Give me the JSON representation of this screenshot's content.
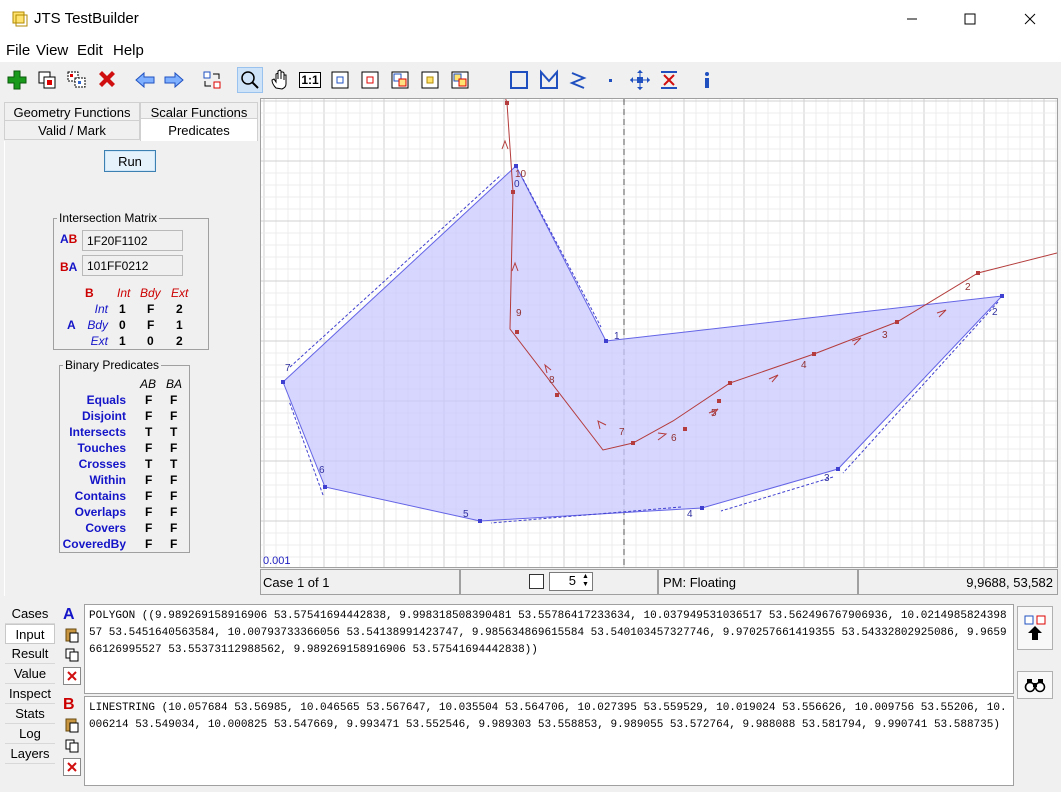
{
  "window": {
    "title": "JTS TestBuilder",
    "app_icon": "jts-app-icon",
    "controls": [
      "minimize-icon",
      "maximize-icon",
      "close-icon"
    ]
  },
  "menu": [
    "File",
    "View",
    "Edit",
    "Help"
  ],
  "toolbar": {
    "left_icons": [
      "add-case-icon",
      "copy-case-icon",
      "duplicate-case-icon",
      "delete-case-icon",
      "prev-case-icon",
      "next-case-icon",
      "exchange-geometries-icon",
      "zoom-icon",
      "pan-icon",
      "one-to-one-icon",
      "zoom-to-input-icon",
      "zoom-to-a-icon",
      "zoom-to-b-icon",
      "zoom-to-result-icon",
      "zoom-to-full-icon"
    ],
    "draw_icons": [
      "draw-rectangle-icon",
      "draw-polygon-icon",
      "draw-linestring-icon",
      "draw-point-icon",
      "edit-vertex-icon",
      "delete-vertex-icon",
      "info-icon"
    ],
    "selected": "zoom-icon",
    "one_to_one_label": "1:1"
  },
  "left_tabs": {
    "row1": [
      "Geometry Functions",
      "Scalar Functions"
    ],
    "row2": [
      "Valid / Mark",
      "Predicates"
    ],
    "active": "Predicates"
  },
  "run_label": "Run",
  "intersection_matrix": {
    "title": "Intersection Matrix",
    "ab_label": "AB",
    "ab_value": "1F20F1102",
    "ba_label": "BA",
    "ba_value": "101FF0212",
    "b_header": "B",
    "a_header": "A",
    "cols": [
      "Int",
      "Bdy",
      "Ext"
    ],
    "rows": [
      {
        "label": "Int",
        "values": [
          "1",
          "F",
          "2"
        ]
      },
      {
        "label": "Bdy",
        "values": [
          "0",
          "F",
          "1"
        ]
      },
      {
        "label": "Ext",
        "values": [
          "1",
          "0",
          "2"
        ]
      }
    ]
  },
  "binary_predicates": {
    "title": "Binary Predicates",
    "cols": [
      "AB",
      "BA"
    ],
    "rows": [
      {
        "name": "Equals",
        "ab": "F",
        "ba": "F"
      },
      {
        "name": "Disjoint",
        "ab": "F",
        "ba": "F"
      },
      {
        "name": "Intersects",
        "ab": "T",
        "ba": "T"
      },
      {
        "name": "Touches",
        "ab": "F",
        "ba": "F"
      },
      {
        "name": "Crosses",
        "ab": "T",
        "ba": "T"
      },
      {
        "name": "Within",
        "ab": "F",
        "ba": "F"
      },
      {
        "name": "Contains",
        "ab": "F",
        "ba": "F"
      },
      {
        "name": "Overlaps",
        "ab": "F",
        "ba": "F"
      },
      {
        "name": "Covers",
        "ab": "F",
        "ba": "F"
      },
      {
        "name": "CoveredBy",
        "ab": "F",
        "ba": "F"
      }
    ]
  },
  "canvas": {
    "scale_label": "0.001",
    "polygon_vertex_labels": [
      "0",
      "1",
      "2",
      "3",
      "4",
      "5",
      "6",
      "7"
    ],
    "line_vertex_labels": [
      "2",
      "3",
      "4",
      "5",
      "6",
      "7",
      "8",
      "9",
      "10"
    ],
    "colors": {
      "polygon_fill": "#c8c8ff",
      "polygon_stroke": "#6464e6",
      "line_stroke": "#b43c3c",
      "grid": "#e6e6e6"
    }
  },
  "status": {
    "case": "Case 1 of 1",
    "spinner_value": "5",
    "precision": "PM: Floating",
    "coords": "9,9688, 53,582"
  },
  "bottom_tabs": [
    "Cases",
    "Input",
    "Result",
    "Value",
    "Inspect",
    "Stats",
    "Log",
    "Layers"
  ],
  "bottom_active": "Input",
  "geom_a": {
    "label": "A",
    "wkt": "POLYGON ((9.989269158916906 53.57541694442838, 9.998318508390481 53.55786417233634, 10.037949531036517 53.562496767906936, 10.021498582439857 53.5451640563584, 10.00793733366056 53.54138991423747, 9.985634869615584 53.540103457327746, 9.970257661419355 53.54332802925086, 9.965966126995527 53.55373112988562, 9.989269158916906 53.57541694442838))"
  },
  "geom_b": {
    "label": "B",
    "wkt": "LINESTRING (10.057684 53.56985, 10.046565 53.567647, 10.035504 53.564706, 10.027395 53.559529, 10.019024 53.556626, 10.009756 53.55206, 10.006214 53.549034, 10.000825 53.547669, 9.993471 53.552546, 9.989303 53.558853, 9.989055 53.572764, 9.988088 53.581794, 9.990741 53.588735)"
  }
}
